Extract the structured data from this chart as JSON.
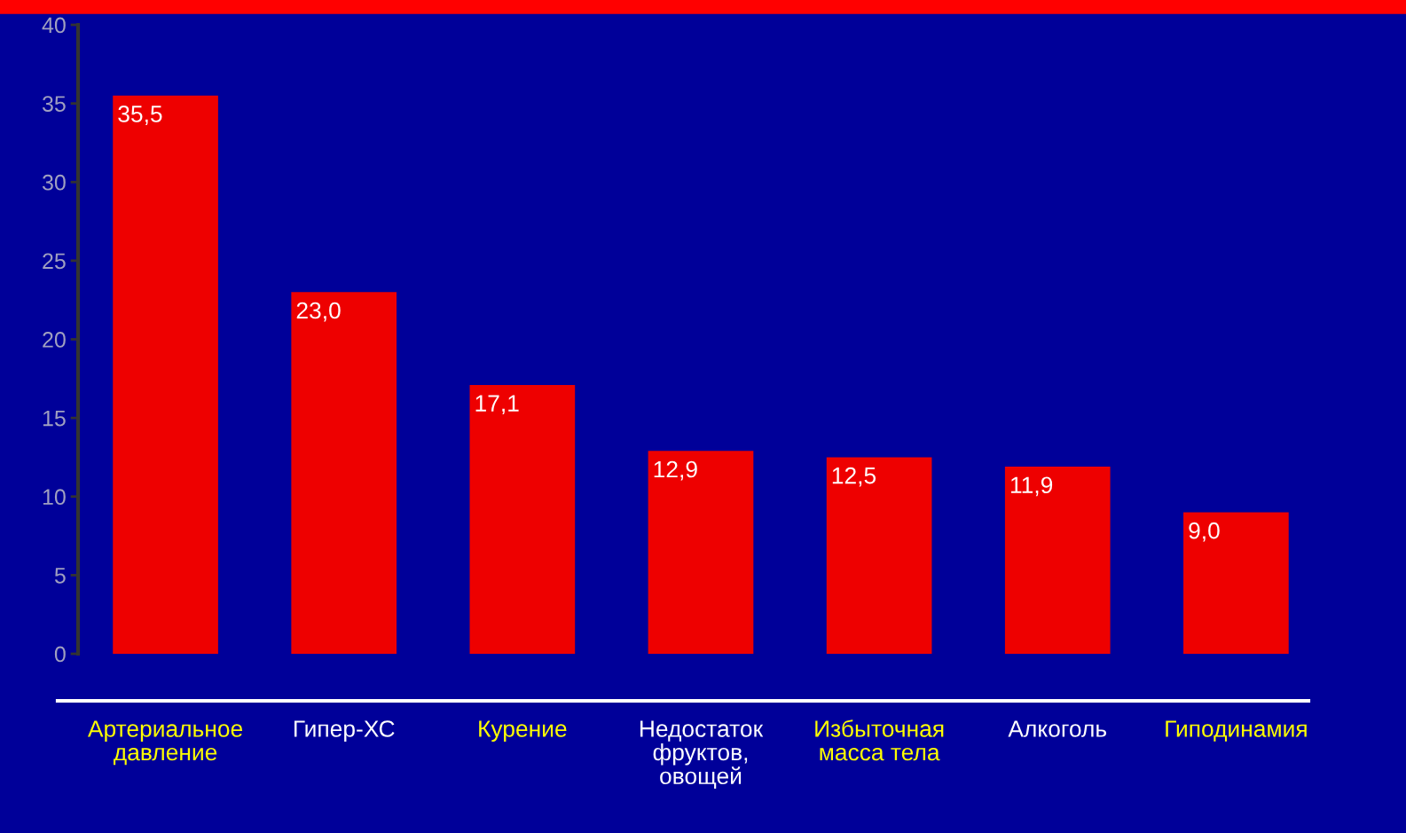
{
  "chart_data": {
    "type": "bar",
    "categories": [
      "Артериальное\nдавление",
      "Гипер-ХС",
      "Курение",
      "Недостаток\nфруктов,\nовощей",
      "Избыточная\nмасса тела",
      "Алкоголь",
      "Гиподинамия"
    ],
    "values": [
      35.5,
      23.0,
      17.1,
      12.9,
      12.5,
      11.9,
      9.0
    ],
    "value_labels": [
      "35,5",
      "23,0",
      "17,1",
      "12,9",
      "12,5",
      "11,9",
      "9,0"
    ],
    "color": "#ee0000",
    "ylim": [
      0,
      40
    ],
    "yticks": [
      0,
      5,
      10,
      15,
      20,
      25,
      30,
      35,
      40
    ],
    "grid": false
  }
}
